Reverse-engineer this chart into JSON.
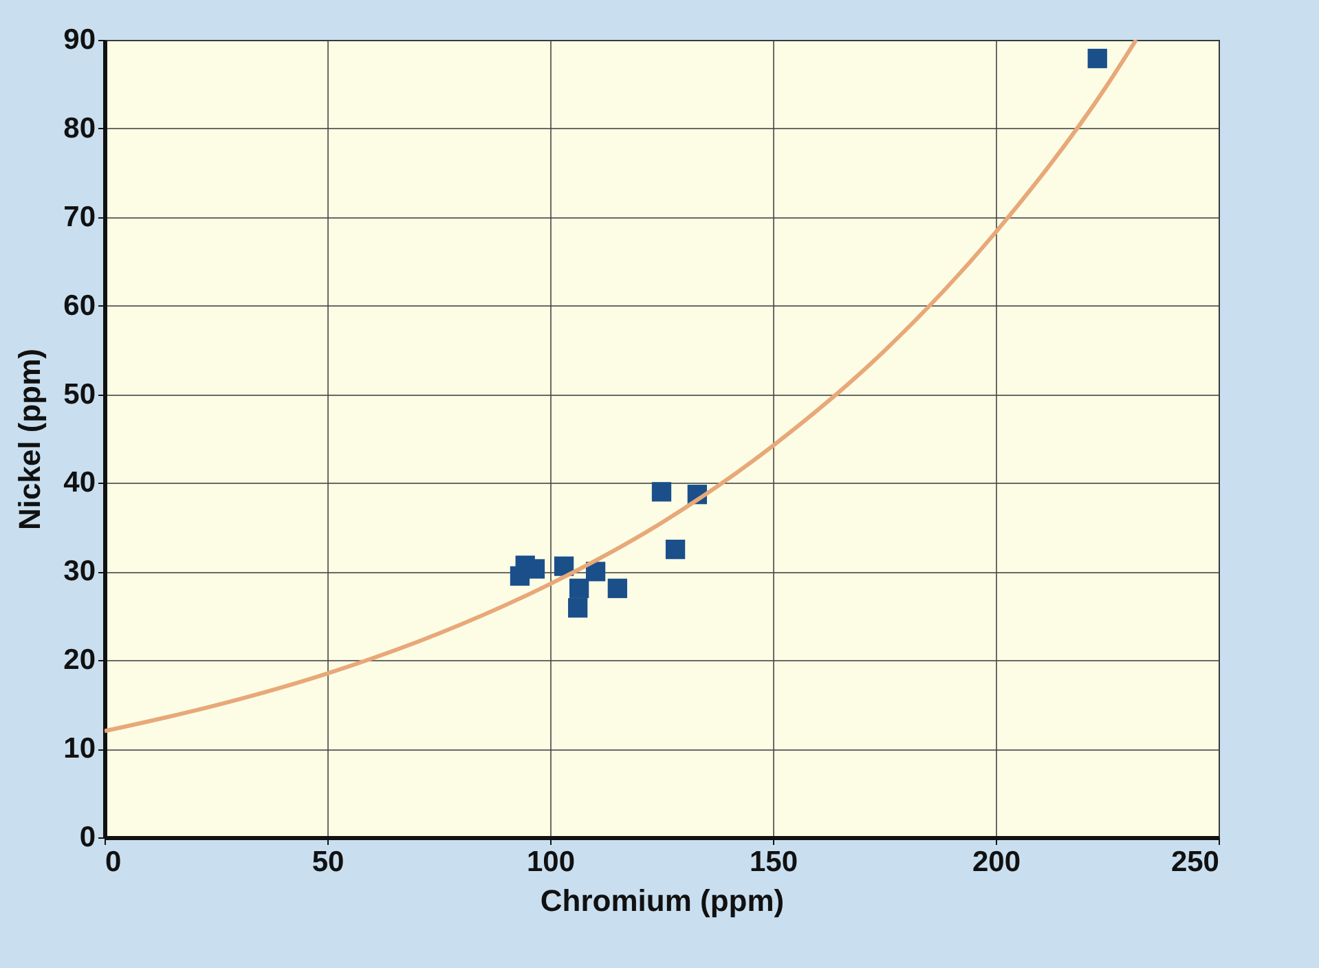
{
  "chart_data": {
    "type": "scatter",
    "xlabel": "Chromium (ppm)",
    "ylabel": "Nickel (ppm)",
    "xlim": [
      0,
      250
    ],
    "xticks": [
      0,
      50,
      100,
      150,
      200,
      250
    ],
    "ylim": [
      0,
      90
    ],
    "yticks": [
      0,
      10,
      20,
      30,
      40,
      50,
      60,
      70,
      80,
      90
    ],
    "grid": true,
    "marker": "square",
    "series": [
      {
        "color": "#1a4f8a",
        "x": [
          93.2,
          94.4,
          96.6,
          103.1,
          106.2,
          106.5,
          110.2,
          115.1,
          125,
          128.1,
          133,
          222.8
        ],
        "values": [
          29.5,
          30.7,
          30.3,
          30.6,
          25.9,
          28.1,
          30.0,
          28.1,
          39.0,
          32.5,
          38.7,
          87.9
        ]
      },
      {
        "type": "line",
        "color": "#e8a878",
        "marker": "none",
        "x": [
          0,
          25,
          50,
          75,
          100,
          125,
          150,
          175,
          200,
          225,
          231.5
        ],
        "values": [
          12,
          14.9,
          18.5,
          23.0,
          28.6,
          35.5,
          44.2,
          54.9,
          68.3,
          84.9,
          90
        ]
      }
    ]
  }
}
